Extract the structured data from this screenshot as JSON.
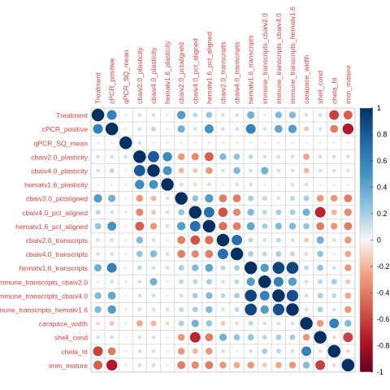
{
  "chart_data": {
    "type": "heatmap",
    "variables": [
      "Treatment",
      "cPCR_positive",
      "qPCR_SQ_mean",
      "cbaiv2.0_plasticity",
      "cbaiv4.0_plasticity",
      "hematv1.6_plasticity",
      "cbaiv2.0_pctaligned",
      "cbaiv4.0_pct_aligned",
      "hematv1.6_pct_aligned",
      "cbaiv2.0_transcripts",
      "cbaiv4.0_transcripts",
      "hematv1.6_transcripts",
      "immune_transcripts_cbaiv2.0",
      "immune_transcripts_cbaiv4.0",
      "immune_transcripts_hematv1.6",
      "carapace_width",
      "shell_cond",
      "chela_ht",
      "imm_mature"
    ],
    "matrix": [
      [
        1,
        0.6,
        -0.05,
        0.1,
        0.1,
        0.05,
        0.45,
        0.15,
        0.25,
        0.1,
        0.1,
        0.35,
        0.05,
        0.3,
        0.3,
        -0.1,
        0.1,
        -0.6,
        -0.5
      ],
      [
        0.6,
        1,
        0.05,
        0.1,
        0.15,
        0.05,
        0.35,
        0.1,
        0.5,
        0.1,
        0.1,
        0.6,
        0.1,
        0.4,
        0.45,
        -0.15,
        0.1,
        -0.4,
        -0.75
      ],
      [
        -0.05,
        0.05,
        1,
        0.1,
        0.05,
        0.05,
        -0.05,
        0.05,
        0.05,
        -0.05,
        0.05,
        0.05,
        0.05,
        0.05,
        0.05,
        -0.05,
        0.05,
        0.05,
        0.05
      ],
      [
        0.1,
        0.1,
        0.1,
        1,
        0.8,
        0.55,
        -0.3,
        -0.35,
        -0.5,
        0.3,
        0.25,
        0.15,
        0.1,
        0.1,
        0.1,
        -0.25,
        0.1,
        0.1,
        -0.1
      ],
      [
        0.1,
        0.15,
        0.05,
        0.8,
        1,
        0.5,
        -0.2,
        -0.15,
        -0.3,
        0.1,
        0.3,
        0.1,
        0.35,
        0.1,
        0.1,
        -0.2,
        0.1,
        0.1,
        -0.1
      ],
      [
        0.05,
        0.05,
        0.05,
        0.55,
        0.5,
        1,
        -0.1,
        -0.1,
        -0.1,
        0.05,
        0.1,
        0.1,
        0.05,
        0.05,
        0.1,
        -0.1,
        0.05,
        0.05,
        -0.05
      ],
      [
        0.45,
        0.35,
        -0.05,
        -0.3,
        -0.2,
        -0.1,
        1,
        0.25,
        0.45,
        -0.4,
        -0.4,
        0.2,
        0.15,
        0.1,
        0.15,
        0.2,
        -0.3,
        -0.3,
        -0.4
      ],
      [
        0.15,
        0.1,
        0.05,
        -0.35,
        -0.15,
        -0.1,
        0.25,
        1,
        0.7,
        -0.55,
        -0.35,
        0.3,
        0.15,
        0.2,
        0.2,
        0.35,
        -0.7,
        -0.2,
        -0.35
      ],
      [
        0.25,
        0.5,
        0.05,
        -0.5,
        -0.3,
        -0.1,
        0.45,
        0.7,
        1,
        -0.45,
        -0.4,
        0.4,
        0.2,
        0.3,
        0.3,
        0.25,
        -0.4,
        -0.3,
        -0.4
      ],
      [
        0.1,
        0.1,
        -0.05,
        0.3,
        0.1,
        0.05,
        -0.4,
        -0.55,
        -0.45,
        1,
        0.7,
        0.15,
        0.1,
        0.15,
        0.1,
        -0.15,
        0.35,
        0.1,
        -0.3
      ],
      [
        0.1,
        0.1,
        0.05,
        0.25,
        0.3,
        0.1,
        -0.4,
        -0.35,
        -0.4,
        0.7,
        1,
        0.2,
        0.15,
        0.2,
        0.15,
        -0.1,
        0.25,
        0.05,
        -0.25
      ],
      [
        0.35,
        0.6,
        0.05,
        0.15,
        0.1,
        0.1,
        0.2,
        0.3,
        0.4,
        0.15,
        0.2,
        1,
        0.45,
        0.9,
        0.9,
        0.15,
        0.25,
        0.1,
        -0.3
      ],
      [
        0.05,
        0.1,
        0.05,
        0.1,
        0.35,
        0.05,
        0.15,
        0.15,
        0.2,
        0.1,
        0.15,
        0.45,
        1,
        0.6,
        0.45,
        0.1,
        0.15,
        0.2,
        -0.15
      ],
      [
        0.3,
        0.4,
        0.05,
        0.1,
        0.1,
        0.05,
        0.1,
        0.2,
        0.3,
        0.15,
        0.2,
        0.9,
        0.6,
        1,
        0.85,
        0.1,
        0.2,
        0.15,
        -0.25
      ],
      [
        0.3,
        0.45,
        0.05,
        0.1,
        0.1,
        0.1,
        0.15,
        0.2,
        0.3,
        0.1,
        0.15,
        0.9,
        0.45,
        0.85,
        1,
        0.1,
        0.2,
        0.1,
        -0.3
      ],
      [
        -0.1,
        -0.15,
        -0.05,
        -0.25,
        -0.2,
        -0.1,
        0.2,
        0.35,
        0.25,
        -0.15,
        -0.1,
        0.15,
        0.1,
        0.1,
        0.1,
        1,
        -0.3,
        0.6,
        0.3
      ],
      [
        0.1,
        0.1,
        0.05,
        0.1,
        0.1,
        0.05,
        -0.3,
        -0.7,
        -0.4,
        0.35,
        0.25,
        0.25,
        0.15,
        0.2,
        0.2,
        -0.3,
        1,
        -0.1,
        -0.6
      ],
      [
        -0.6,
        -0.4,
        0.05,
        0.1,
        0.1,
        0.05,
        -0.3,
        -0.2,
        -0.3,
        0.1,
        0.05,
        0.1,
        0.2,
        0.15,
        0.1,
        0.6,
        -0.1,
        1,
        -0.1
      ],
      [
        -0.5,
        -0.75,
        0.05,
        -0.1,
        -0.1,
        -0.05,
        -0.4,
        -0.35,
        -0.4,
        -0.3,
        -0.25,
        -0.3,
        -0.15,
        -0.25,
        -0.3,
        0.3,
        -0.6,
        -0.1,
        1
      ]
    ],
    "colorbar": {
      "range": [
        -1,
        1
      ],
      "ticks": [
        "1",
        "0.8",
        "0.6",
        "0.4",
        "0.2",
        "0",
        "-0.2",
        "-0.4",
        "-0.6",
        "-0.8",
        "-1"
      ]
    },
    "colors": {
      "negative_strong": "#67001f",
      "negative_mid": "#d6604d",
      "neutral": "#f7f7f7",
      "positive_mid": "#4393c3",
      "positive_strong": "#053061",
      "label": "#e04040",
      "grid": "#cccccc"
    },
    "ylabel": "",
    "xlabel": "",
    "title": ""
  }
}
